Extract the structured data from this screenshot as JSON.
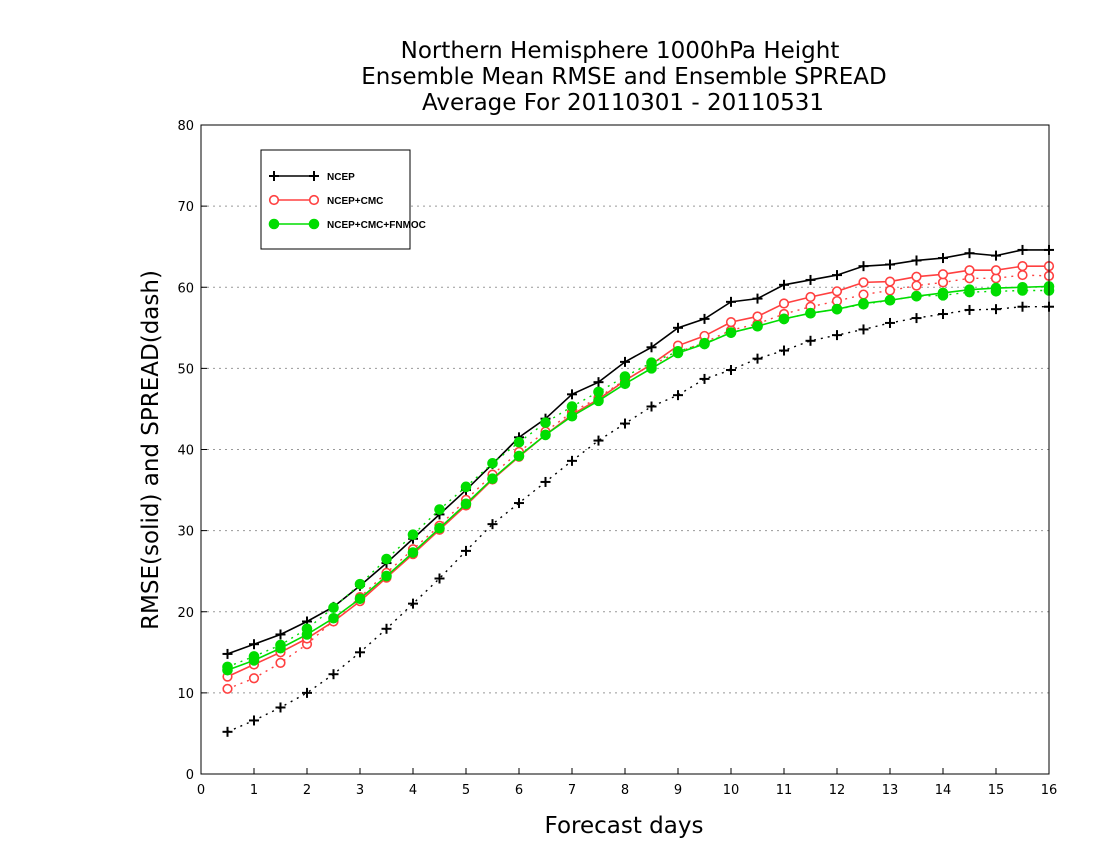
{
  "chart_data": {
    "type": "line",
    "title_lines": [
      "Northern Hemisphere 1000hPa Height",
      "Ensemble Mean RMSE and Ensemble SPREAD",
      "Average For 20110301 - 20110531"
    ],
    "xlabel": "Forecast days",
    "ylabel": "RMSE(solid) and SPREAD(dash)",
    "xlim": [
      0,
      16
    ],
    "ylim": [
      0,
      80
    ],
    "xticks": [
      0,
      1,
      2,
      3,
      4,
      5,
      6,
      7,
      8,
      9,
      10,
      11,
      12,
      13,
      14,
      15,
      16
    ],
    "yticks": [
      0,
      10,
      20,
      30,
      40,
      50,
      60,
      70,
      80
    ],
    "grid": "horizontal dotted",
    "legend_position": "top-left",
    "x": [
      0.5,
      1,
      1.5,
      2,
      2.5,
      3,
      3.5,
      4,
      4.5,
      5,
      5.5,
      6,
      6.5,
      7,
      7.5,
      8,
      8.5,
      9,
      9.5,
      10,
      10.5,
      11,
      11.5,
      12,
      12.5,
      13,
      13.5,
      14,
      14.5,
      15,
      15.5,
      16
    ],
    "series": [
      {
        "name": "NCEP",
        "color": "#000000",
        "marker": "plus",
        "rmse": [
          14.8,
          16.0,
          17.2,
          18.8,
          20.6,
          23.2,
          26.0,
          29.0,
          32.0,
          35.0,
          38.2,
          41.5,
          43.8,
          46.8,
          48.3,
          50.8,
          52.6,
          55.0,
          56.1,
          58.2,
          58.6,
          60.3,
          60.9,
          61.5,
          62.6,
          62.8,
          63.3,
          63.6,
          64.2,
          63.9,
          64.6,
          64.6
        ],
        "spread": [
          5.2,
          6.6,
          8.2,
          10.0,
          12.3,
          15.0,
          17.9,
          21.0,
          24.1,
          27.5,
          30.8,
          33.4,
          36.0,
          38.6,
          41.1,
          43.2,
          45.3,
          46.7,
          48.7,
          49.8,
          51.2,
          52.2,
          53.4,
          54.1,
          54.8,
          55.6,
          56.2,
          56.7,
          57.2,
          57.3,
          57.6,
          57.6
        ]
      },
      {
        "name": "NCEP+CMC",
        "color": "#ff4040",
        "marker": "open-circle",
        "rmse": [
          12.0,
          13.5,
          15.0,
          16.7,
          18.8,
          21.3,
          24.2,
          27.1,
          30.1,
          33.1,
          36.3,
          39.1,
          41.8,
          44.3,
          46.2,
          48.5,
          50.5,
          52.8,
          54.0,
          55.7,
          56.4,
          58.0,
          58.8,
          59.5,
          60.6,
          60.7,
          61.3,
          61.6,
          62.1,
          62.1,
          62.6,
          62.6
        ],
        "spread": [
          10.5,
          11.8,
          13.7,
          16.0,
          18.9,
          21.8,
          24.8,
          27.7,
          30.6,
          33.8,
          36.9,
          39.7,
          42.2,
          44.6,
          46.4,
          48.6,
          50.4,
          52.0,
          53.2,
          54.7,
          55.5,
          56.7,
          57.6,
          58.3,
          59.1,
          59.6,
          60.2,
          60.6,
          61.1,
          61.1,
          61.5,
          61.4
        ]
      },
      {
        "name": "NCEP+CMC+FNMOC",
        "color": "#00dd00",
        "marker": "filled-circle",
        "rmse": [
          12.8,
          14.0,
          15.5,
          17.2,
          19.2,
          21.6,
          24.4,
          27.3,
          30.3,
          33.3,
          36.4,
          39.2,
          41.8,
          44.1,
          46.0,
          48.1,
          50.0,
          51.9,
          53.0,
          54.4,
          55.2,
          56.1,
          56.8,
          57.3,
          58.0,
          58.4,
          58.9,
          59.3,
          59.7,
          59.9,
          60.0,
          60.1
        ],
        "spread": [
          13.2,
          14.5,
          15.9,
          17.9,
          20.5,
          23.4,
          26.5,
          29.5,
          32.6,
          35.4,
          38.3,
          40.9,
          43.3,
          45.3,
          47.1,
          49.0,
          50.7,
          52.1,
          53.1,
          54.4,
          55.2,
          56.1,
          56.8,
          57.3,
          57.9,
          58.4,
          58.9,
          59.0,
          59.4,
          59.5,
          59.6,
          59.6
        ]
      }
    ]
  }
}
